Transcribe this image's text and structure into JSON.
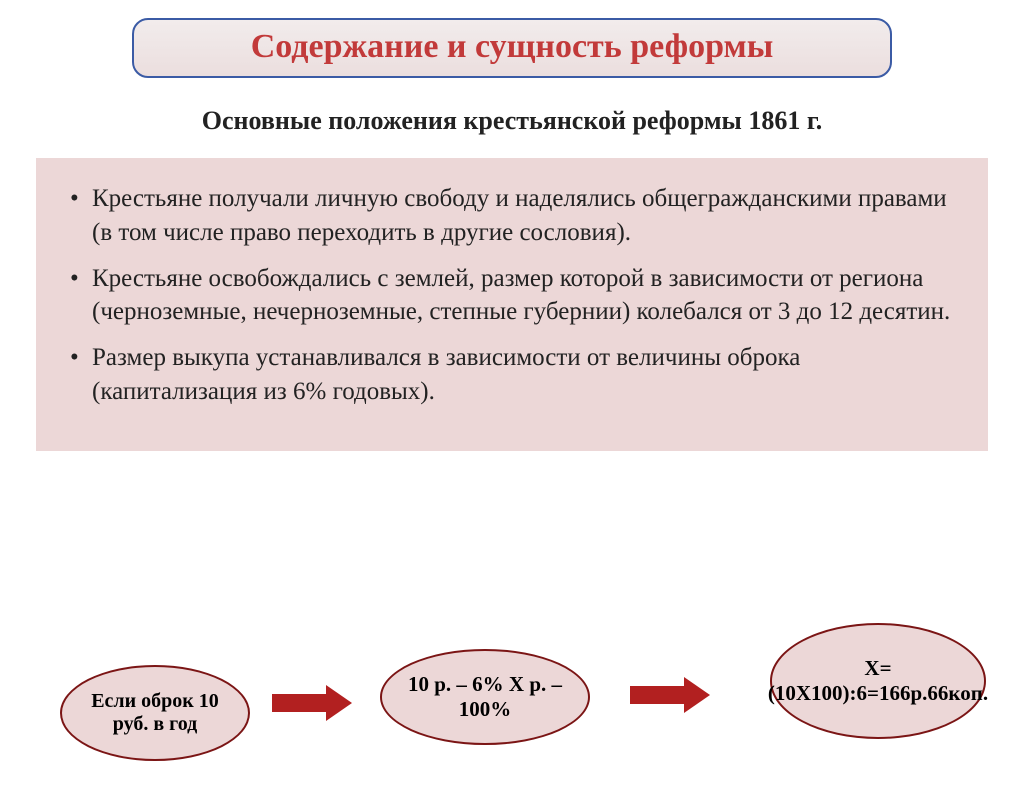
{
  "title": "Содержание и сущность реформы",
  "subtitle": "Основные положения крестьянской реформы 1861 г.",
  "bullets": [
    "Крестьяне получали личную свободу и наделялись общегражданскими правами (в том числе право переходить в другие сословия).",
    "Крестьяне освобождались с землей, размер которой в зависимости от региона (черноземные, нечерноземные, степные губернии) колебался от 3 до 12 десятин.",
    "Размер выкупа устанавливался в зависимости от величины оброка (капитализация из 6% годовых)."
  ],
  "flow": {
    "b1": "Если оброк 10 руб. в год",
    "b2": "10 р. – 6% Х р. – 100%",
    "b3": "Х=(10Х100):6=166р.66коп."
  },
  "colors": {
    "title_text": "#c23a3a",
    "title_border": "#3b5ba5",
    "title_bg_top": "#f2ecec",
    "title_bg_bottom": "#ebdede",
    "content_bg": "#ecd7d7",
    "bubble_border": "#7b1515",
    "arrow": "#b22020",
    "page_bg": "#ffffff",
    "text": "#222222"
  },
  "fonts": {
    "family": "Times New Roman",
    "title_size_pt": 26,
    "subtitle_size_pt": 20,
    "body_size_pt": 19,
    "bubble_size_pt": 16
  }
}
